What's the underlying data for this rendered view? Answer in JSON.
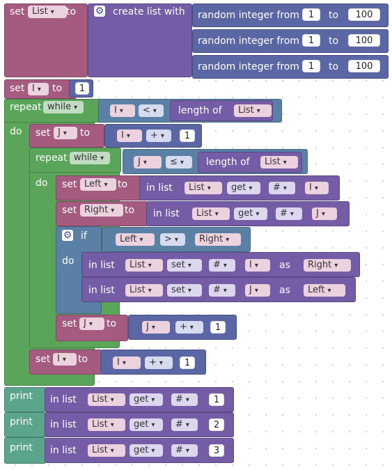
{
  "workspace": {
    "kw_set": "set",
    "kw_to": "to",
    "kw_create_list": "create list with",
    "kw_random_int": "random integer from",
    "kw_repeat": "repeat",
    "kw_while": "while",
    "kw_do": "do",
    "kw_length_of": "length of",
    "kw_in_list": "in list",
    "kw_get": "get",
    "kw_set_op": "set",
    "kw_hash": "#",
    "kw_if": "if",
    "kw_as": "as",
    "kw_print": "print",
    "op_lt": "<",
    "op_gt": ">",
    "op_le": "≤",
    "op_plus": "+",
    "var_list": "List",
    "var_i": "I",
    "var_j": "J",
    "var_left": "Left",
    "var_right": "Right",
    "rand_from": "1",
    "rand_to": "100",
    "num_1": "1",
    "num_2": "2",
    "num_3": "3",
    "icon_mutator": "gear-icon"
  }
}
